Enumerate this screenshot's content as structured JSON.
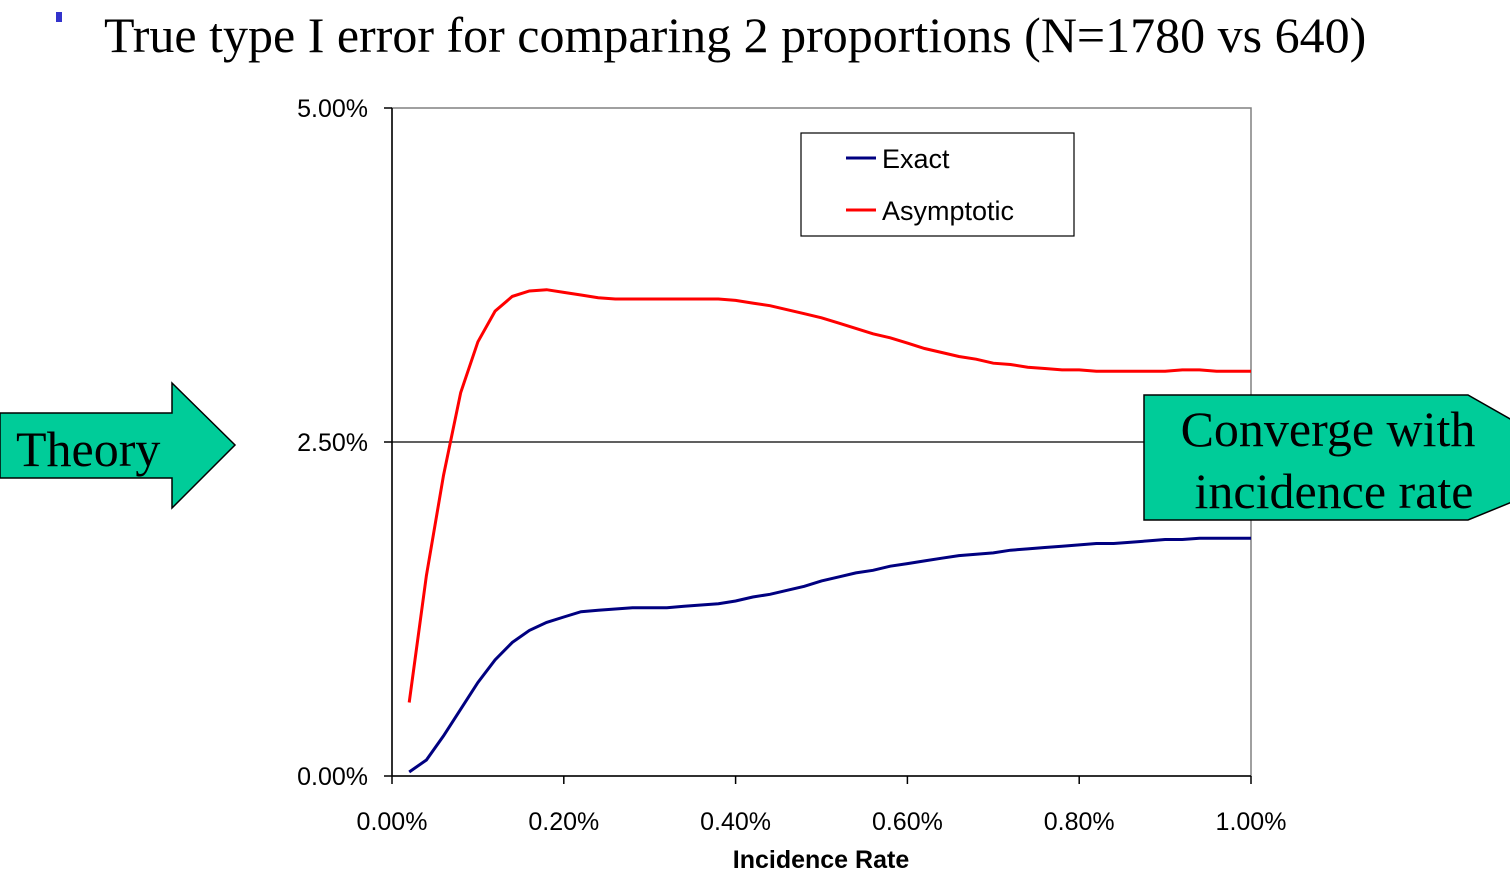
{
  "title": "True type I error for comparing 2 proportions (N=1780 vs 640)",
  "colors": {
    "exact": "#000080",
    "asymptotic": "#ff0000",
    "arrow_fill": "#00cc99"
  },
  "callouts": {
    "left": "Theory",
    "right_line1": "Converge with",
    "right_line2": "incidence rate"
  },
  "chart_data": {
    "type": "line",
    "title": "",
    "xlabel": "Incidence Rate",
    "ylabel": "",
    "xlim": [
      0,
      1.0
    ],
    "ylim": [
      0,
      5.0
    ],
    "x_ticks": [
      "0.00%",
      "0.20%",
      "0.40%",
      "0.60%",
      "0.80%",
      "1.00%"
    ],
    "y_ticks": [
      "0.00%",
      "2.50%",
      "5.00%"
    ],
    "grid": "horizontal major line at 2.50%",
    "legend": {
      "placement": "top-right",
      "entries": [
        "Exact",
        "Asymptotic"
      ]
    },
    "x": [
      0.02,
      0.04,
      0.06,
      0.08,
      0.1,
      0.12,
      0.14,
      0.16,
      0.18,
      0.2,
      0.22,
      0.24,
      0.26,
      0.28,
      0.3,
      0.32,
      0.34,
      0.36,
      0.38,
      0.4,
      0.42,
      0.44,
      0.46,
      0.48,
      0.5,
      0.52,
      0.54,
      0.56,
      0.58,
      0.6,
      0.62,
      0.64,
      0.66,
      0.68,
      0.7,
      0.72,
      0.74,
      0.76,
      0.78,
      0.8,
      0.82,
      0.84,
      0.86,
      0.88,
      0.9,
      0.92,
      0.94,
      0.96,
      0.98,
      1.0
    ],
    "series": [
      {
        "name": "Exact",
        "values": [
          0.03,
          0.12,
          0.3,
          0.5,
          0.7,
          0.87,
          1.0,
          1.09,
          1.15,
          1.19,
          1.23,
          1.24,
          1.25,
          1.26,
          1.26,
          1.26,
          1.27,
          1.28,
          1.29,
          1.31,
          1.34,
          1.36,
          1.39,
          1.42,
          1.46,
          1.49,
          1.52,
          1.54,
          1.57,
          1.59,
          1.61,
          1.63,
          1.65,
          1.66,
          1.67,
          1.69,
          1.7,
          1.71,
          1.72,
          1.73,
          1.74,
          1.74,
          1.75,
          1.76,
          1.77,
          1.77,
          1.78,
          1.78,
          1.78,
          1.78
        ]
      },
      {
        "name": "Asymptotic",
        "values": [
          0.55,
          1.5,
          2.25,
          2.87,
          3.25,
          3.48,
          3.59,
          3.63,
          3.64,
          3.62,
          3.6,
          3.58,
          3.57,
          3.57,
          3.57,
          3.57,
          3.57,
          3.57,
          3.57,
          3.56,
          3.54,
          3.52,
          3.49,
          3.46,
          3.43,
          3.39,
          3.35,
          3.31,
          3.28,
          3.24,
          3.2,
          3.17,
          3.14,
          3.12,
          3.09,
          3.08,
          3.06,
          3.05,
          3.04,
          3.04,
          3.03,
          3.03,
          3.03,
          3.03,
          3.03,
          3.04,
          3.04,
          3.03,
          3.03,
          3.03
        ]
      }
    ]
  }
}
